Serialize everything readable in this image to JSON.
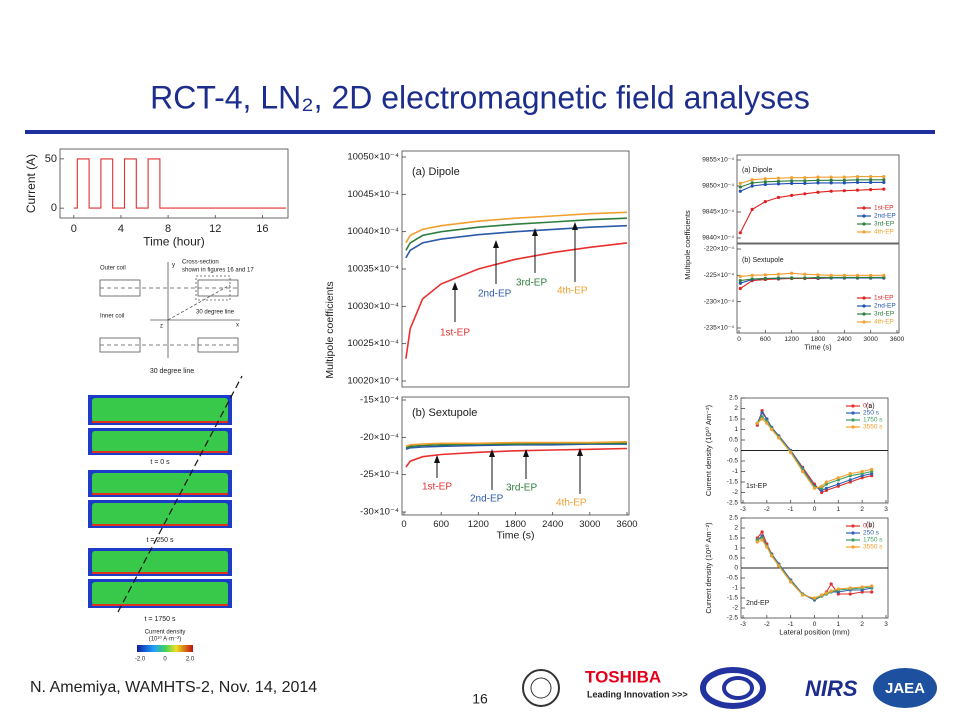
{
  "header": {
    "title": "RCT-4, LN₂, 2D electromagnetic field analyses"
  },
  "footer": {
    "author": "N. Amemiya, WAMHTS-2, Nov. 14, 2014",
    "page": "16",
    "logos": [
      "TOSHIBA",
      "Leading Innovation >>>",
      "NIRS",
      "JAEA"
    ]
  },
  "figure": {
    "coil_labels": [
      "Outer coil",
      "Inner coil",
      "Cross-section",
      "shown in figures 16 and 17",
      "30 degree line",
      "y",
      "x",
      "z"
    ],
    "line_label": "30 degree line",
    "times": [
      "t = 0 s",
      "t = 250 s",
      "t = 1750 s"
    ],
    "colorbar_title": [
      "Current density",
      "(10¹⁰ A·m⁻²)"
    ],
    "colorbar_ticks": [
      "-2.0",
      "0",
      "2.0"
    ]
  },
  "chart_data": [
    {
      "type": "line",
      "xlabel": "Time (hour)",
      "ylabel": "Current (A)",
      "x": [
        0,
        0.3,
        0.3,
        1.3,
        1.3,
        2.3,
        2.3,
        3.3,
        3.3,
        4.3,
        4.3,
        5.3,
        5.3,
        6.3,
        6.3,
        7.3,
        7.3,
        18
      ],
      "series": [
        {
          "name": "Current",
          "color": "#e03030",
          "values": [
            0,
            0,
            50,
            50,
            0,
            0,
            50,
            50,
            0,
            0,
            50,
            50,
            0,
            0,
            50,
            50,
            0,
            0
          ]
        }
      ],
      "xlim": [
        -1,
        18
      ],
      "ylim": [
        -10,
        60
      ],
      "xticks": [
        0,
        4,
        8,
        12,
        16
      ],
      "yticks": [
        0,
        50
      ]
    },
    {
      "type": "line",
      "ylabel": "Multipole coefficients",
      "annotations": [
        "(a) Dipole",
        "1st-EP",
        "2nd-EP",
        "3rd-EP",
        "4th-EP"
      ],
      "x": [
        30,
        100,
        300,
        600,
        1200,
        1800,
        2400,
        3000,
        3600
      ],
      "series": [
        {
          "name": "1st-EP",
          "color": "#e8312f",
          "values": [
            10023,
            10027,
            10031,
            10033,
            10035,
            10036.3,
            10037.2,
            10037.9,
            10038.5
          ]
        },
        {
          "name": "2nd-EP",
          "color": "#2b5aa8",
          "values": [
            10036.5,
            10037.5,
            10038.5,
            10039,
            10039.6,
            10040,
            10040.3,
            10040.6,
            10040.8
          ]
        },
        {
          "name": "3rd-EP",
          "color": "#2e7d3e",
          "values": [
            10037.5,
            10038.5,
            10039.5,
            10040,
            10040.6,
            10041,
            10041.3,
            10041.6,
            10041.8
          ]
        },
        {
          "name": "4th-EP",
          "color": "#f0a030",
          "values": [
            10038.5,
            10039.5,
            10040.3,
            10040.8,
            10041.4,
            10041.8,
            10042.1,
            10042.4,
            10042.6
          ]
        }
      ],
      "xlim": [
        0,
        3600
      ],
      "ylim": [
        10020,
        10050
      ],
      "yticks": [
        {
          "value": 10050,
          "label": "10050×10⁻⁴"
        },
        {
          "value": 10045,
          "label": "10045×10⁻⁴"
        },
        {
          "value": 10040,
          "label": "10040×10⁻⁴"
        },
        {
          "value": 10035,
          "label": "10035×10⁻⁴"
        },
        {
          "value": 10030,
          "label": "10030×10⁻⁴"
        },
        {
          "value": 10025,
          "label": "10025×10⁻⁴"
        },
        {
          "value": 10020,
          "label": "10020×10⁻⁴"
        }
      ]
    },
    {
      "type": "line",
      "xlabel": "Time (s)",
      "annotations": [
        "(b) Sextupole",
        "1st-EP",
        "2nd-EP",
        "3rd-EP",
        "4th-EP"
      ],
      "x": [
        30,
        100,
        300,
        600,
        1200,
        1800,
        2400,
        3000,
        3600
      ],
      "series": [
        {
          "name": "1st-EP",
          "color": "#e8312f",
          "values": [
            -24,
            -23.2,
            -22.6,
            -22.3,
            -22,
            -21.8,
            -21.7,
            -21.6,
            -21.5
          ]
        },
        {
          "name": "2nd-EP",
          "color": "#2b5aa8",
          "values": [
            -21.6,
            -21.4,
            -21.3,
            -21.2,
            -21.1,
            -21,
            -21,
            -20.9,
            -20.9
          ]
        },
        {
          "name": "3rd-EP",
          "color": "#2e7d3e",
          "values": [
            -21.4,
            -21.2,
            -21.1,
            -21,
            -20.9,
            -20.9,
            -20.8,
            -20.8,
            -20.8
          ]
        },
        {
          "name": "4th-EP",
          "color": "#f0a030",
          "values": [
            -21.2,
            -21,
            -20.9,
            -20.8,
            -20.8,
            -20.7,
            -20.7,
            -20.7,
            -20.6
          ]
        }
      ],
      "xlim": [
        0,
        3600
      ],
      "ylim": [
        -30,
        -15
      ],
      "xticks": [
        0,
        600,
        1200,
        1800,
        2400,
        3000,
        3600
      ],
      "yticks": [
        {
          "value": -15,
          "label": "-15×10⁻⁴"
        },
        {
          "value": -20,
          "label": "-20×10⁻⁴"
        },
        {
          "value": -25,
          "label": "-25×10⁻⁴"
        },
        {
          "value": -30,
          "label": "-30×10⁻⁴"
        }
      ]
    },
    {
      "type": "line",
      "markers": true,
      "legend": "lower right",
      "ylabel": "Multipole coefficients",
      "annotations": [
        "(a) Dipole"
      ],
      "x": [
        30,
        300,
        600,
        900,
        1200,
        1500,
        1800,
        2100,
        2400,
        2700,
        3000,
        3300
      ],
      "series": [
        {
          "name": "1st-EP",
          "color": "#e02020",
          "values": [
            9841,
            9845.5,
            9847,
            9847.8,
            9848.2,
            9848.5,
            9848.8,
            9849,
            9849.1,
            9849.2,
            9849.3,
            9849.4
          ]
        },
        {
          "name": "2nd-EP",
          "color": "#1f4fb0",
          "values": [
            9849,
            9850,
            9850.3,
            9850.4,
            9850.5,
            9850.5,
            9850.6,
            9850.6,
            9850.6,
            9850.7,
            9850.7,
            9850.7
          ]
        },
        {
          "name": "3rd-EP",
          "color": "#2e7d3e",
          "values": [
            9849.8,
            9850.6,
            9850.8,
            9850.9,
            9851,
            9851,
            9851.1,
            9851.1,
            9851.1,
            9851.2,
            9851.2,
            9851.2
          ]
        },
        {
          "name": "4th-EP",
          "color": "#f0a030",
          "values": [
            9850.5,
            9851.2,
            9851.4,
            9851.5,
            9851.6,
            9851.6,
            9851.7,
            9851.7,
            9851.7,
            9851.8,
            9851.8,
            9851.8
          ]
        }
      ],
      "xlim": [
        0,
        3600
      ],
      "ylim": [
        9840,
        9855
      ],
      "yticks": [
        {
          "value": 9855,
          "label": "9855×10⁻⁴"
        },
        {
          "value": 9850,
          "label": "9850×10⁻⁴"
        },
        {
          "value": 9845,
          "label": "9845×10⁻⁴"
        },
        {
          "value": 9840,
          "label": "9840×10⁻⁴"
        }
      ]
    },
    {
      "type": "line",
      "markers": true,
      "legend": "lower right",
      "xlabel": "Time (s)",
      "annotations": [
        "(b) Sextupole"
      ],
      "x": [
        30,
        300,
        600,
        900,
        1200,
        1500,
        1800,
        2100,
        2400,
        2700,
        3000,
        3300
      ],
      "series": [
        {
          "name": "1st-EP",
          "color": "#e02020",
          "values": [
            -227.5,
            -226,
            -225.8,
            -225.7,
            -225.6,
            -225.6,
            -225.6,
            -225.5,
            -225.5,
            -225.5,
            -225.5,
            -225.5
          ]
        },
        {
          "name": "2nd-EP",
          "color": "#1f4fb0",
          "values": [
            -226.5,
            -225.8,
            -225.6,
            -225.6,
            -225.5,
            -225.5,
            -225.5,
            -225.5,
            -225.5,
            -225.5,
            -225.5,
            -225.5
          ]
        },
        {
          "name": "3rd-EP",
          "color": "#2e7d3e",
          "values": [
            -226,
            -225.7,
            -225.6,
            -225.5,
            -225.5,
            -225.5,
            -225.4,
            -225.4,
            -225.4,
            -225.4,
            -225.4,
            -225.4
          ]
        },
        {
          "name": "4th-EP",
          "color": "#f0a030",
          "values": [
            -225.2,
            -225,
            -224.9,
            -224.8,
            -224.6,
            -224.8,
            -224.9,
            -225,
            -225,
            -225,
            -225,
            -225
          ]
        }
      ],
      "xlim": [
        0,
        3600
      ],
      "ylim": [
        -235,
        -220
      ],
      "xticks": [
        0,
        600,
        1200,
        1800,
        2400,
        3000,
        3600
      ],
      "yticks": [
        {
          "value": -220,
          "label": "-220×10⁻⁴"
        },
        {
          "value": -225,
          "label": "-225×10⁻⁴"
        },
        {
          "value": -230,
          "label": "-230×10⁻⁴"
        },
        {
          "value": -235,
          "label": "-235×10⁻⁴"
        }
      ]
    },
    {
      "type": "line",
      "markers": true,
      "legend": "upper right",
      "zero_line": true,
      "ylabel": "Current density (10¹⁰ Am⁻²)",
      "annotations": [
        "(a)",
        "1st-EP"
      ],
      "x": [
        -2.4,
        -2.2,
        -2,
        -1.8,
        -1.5,
        -1,
        -0.5,
        0,
        0.3,
        0.5,
        1,
        1.5,
        2,
        2.4
      ],
      "series": [
        {
          "name": "0 s",
          "color": "#e03030",
          "values": [
            1.2,
            1.9,
            1.5,
            1.1,
            0.7,
            0,
            -0.8,
            -1.6,
            -2,
            -1.9,
            -1.7,
            -1.5,
            -1.3,
            -1.2
          ]
        },
        {
          "name": "250 s",
          "color": "#3060b0",
          "values": [
            1.3,
            1.8,
            1.5,
            1.1,
            0.7,
            0,
            -0.85,
            -1.7,
            -1.9,
            -1.8,
            -1.6,
            -1.4,
            -1.2,
            -1.1
          ]
        },
        {
          "name": "1750 s",
          "color": "#40a060",
          "values": [
            1.3,
            1.6,
            1.4,
            1.05,
            0.65,
            -0.05,
            -0.9,
            -1.75,
            -1.8,
            -1.6,
            -1.4,
            -1.2,
            -1.1,
            -1
          ]
        },
        {
          "name": "3550 s",
          "color": "#f0a030",
          "values": [
            1.3,
            1.5,
            1.3,
            1,
            0.6,
            -0.1,
            -1,
            -1.8,
            -1.7,
            -1.5,
            -1.3,
            -1.1,
            -1,
            -0.9
          ]
        }
      ],
      "xlim": [
        -3,
        3
      ],
      "ylim": [
        -2.5,
        2.5
      ],
      "xticks": [
        -3,
        -2,
        -1,
        0,
        1,
        2,
        3
      ],
      "yticks": [
        2.5,
        2,
        1.5,
        1,
        0.5,
        0,
        -0.5,
        -1,
        -1.5,
        -2,
        -2.5
      ]
    },
    {
      "type": "line",
      "markers": true,
      "legend": "upper right",
      "zero_line": true,
      "ylabel": "Current density (10¹⁰ Am⁻²)",
      "xlabel": "Lateral position (mm)",
      "annotations": [
        "(b)",
        "2nd-EP"
      ],
      "x": [
        -2.4,
        -2.2,
        -2,
        -1.8,
        -1.5,
        -1,
        -0.5,
        0,
        0.3,
        0.5,
        0.7,
        1,
        1.5,
        2,
        2.4
      ],
      "series": [
        {
          "name": "0 s",
          "color": "#e03030",
          "values": [
            1.5,
            1.8,
            1.2,
            0.7,
            0.2,
            -0.6,
            -1.3,
            -1.6,
            -1.4,
            -1.2,
            -0.8,
            -1.3,
            -1.3,
            -1.2,
            -1.2
          ]
        },
        {
          "name": "250 s",
          "color": "#3060b0",
          "values": [
            1.4,
            1.6,
            1.1,
            0.7,
            0.2,
            -0.6,
            -1.3,
            -1.6,
            -1.4,
            -1.3,
            -1.2,
            -1.2,
            -1.1,
            -1.1,
            -1
          ]
        },
        {
          "name": "1750 s",
          "color": "#40a060",
          "values": [
            1.4,
            1.5,
            1.1,
            0.65,
            0.15,
            -0.65,
            -1.3,
            -1.55,
            -1.4,
            -1.3,
            -1.2,
            -1.1,
            -1.05,
            -1,
            -0.95
          ]
        },
        {
          "name": "3550 s",
          "color": "#f0a030",
          "values": [
            1.3,
            1.4,
            1.05,
            0.6,
            0.1,
            -0.7,
            -1.35,
            -1.5,
            -1.35,
            -1.25,
            -1.15,
            -1.05,
            -1,
            -0.95,
            -0.9
          ]
        }
      ],
      "xlim": [
        -3,
        3
      ],
      "ylim": [
        -2.5,
        2.5
      ],
      "xticks": [
        -3,
        -2,
        -1,
        0,
        1,
        2,
        3
      ],
      "yticks": [
        2.5,
        2,
        1.5,
        1,
        0.5,
        0,
        -0.5,
        -1,
        -1.5,
        -2,
        -2.5
      ]
    }
  ]
}
